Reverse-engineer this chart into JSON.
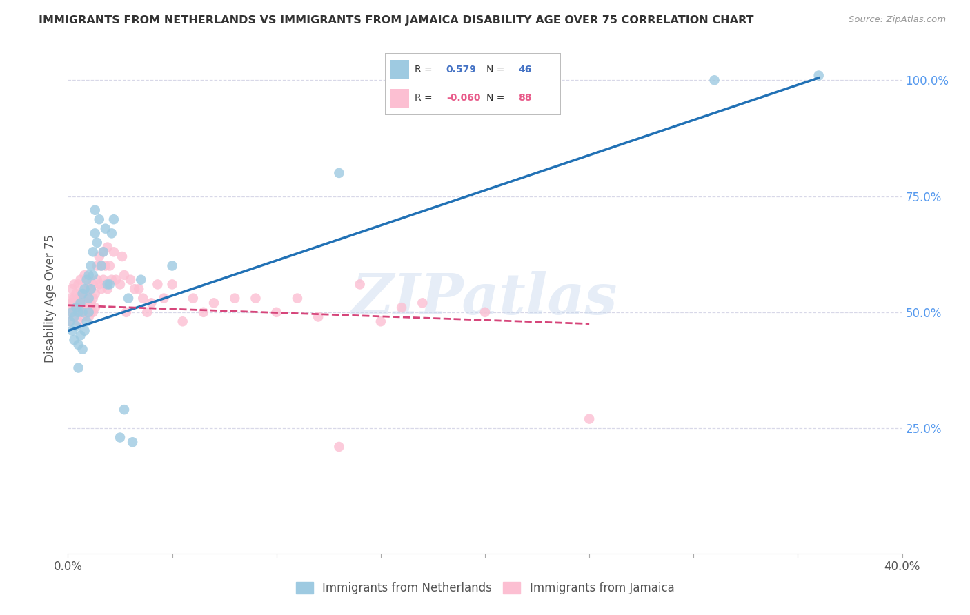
{
  "title": "IMMIGRANTS FROM NETHERLANDS VS IMMIGRANTS FROM JAMAICA DISABILITY AGE OVER 75 CORRELATION CHART",
  "source": "Source: ZipAtlas.com",
  "ylabel": "Disability Age Over 75",
  "y_ticks_right": [
    "100.0%",
    "75.0%",
    "50.0%",
    "25.0%"
  ],
  "y_ticks_right_vals": [
    1.0,
    0.75,
    0.5,
    0.25
  ],
  "xlim": [
    0.0,
    0.4
  ],
  "ylim": [
    -0.02,
    1.08
  ],
  "color_netherlands": "#9ecae1",
  "color_jamaica": "#fcbfd2",
  "trendline_netherlands": "#2171b5",
  "trendline_jamaica": "#d6457a",
  "nl_trend_x0": 0.0,
  "nl_trend_y0": 0.46,
  "nl_trend_x1": 0.36,
  "nl_trend_y1": 1.005,
  "jm_trend_x0": 0.0,
  "jm_trend_y0": 0.515,
  "jm_trend_x1": 0.25,
  "jm_trend_y1": 0.475,
  "netherlands_x": [
    0.001,
    0.002,
    0.002,
    0.003,
    0.003,
    0.004,
    0.004,
    0.005,
    0.005,
    0.005,
    0.006,
    0.006,
    0.007,
    0.007,
    0.007,
    0.008,
    0.008,
    0.009,
    0.009,
    0.01,
    0.01,
    0.01,
    0.011,
    0.011,
    0.012,
    0.012,
    0.013,
    0.013,
    0.014,
    0.015,
    0.016,
    0.017,
    0.018,
    0.019,
    0.02,
    0.021,
    0.022,
    0.025,
    0.027,
    0.029,
    0.031,
    0.035,
    0.05,
    0.13,
    0.31,
    0.36
  ],
  "netherlands_y": [
    0.48,
    0.5,
    0.46,
    0.44,
    0.49,
    0.51,
    0.47,
    0.38,
    0.43,
    0.5,
    0.52,
    0.45,
    0.42,
    0.5,
    0.54,
    0.46,
    0.55,
    0.48,
    0.57,
    0.5,
    0.53,
    0.58,
    0.6,
    0.55,
    0.63,
    0.58,
    0.67,
    0.72,
    0.65,
    0.7,
    0.6,
    0.63,
    0.68,
    0.56,
    0.56,
    0.67,
    0.7,
    0.23,
    0.29,
    0.53,
    0.22,
    0.57,
    0.6,
    0.8,
    1.0,
    1.01
  ],
  "jamaica_x": [
    0.001,
    0.001,
    0.001,
    0.002,
    0.002,
    0.002,
    0.003,
    0.003,
    0.003,
    0.003,
    0.004,
    0.004,
    0.004,
    0.005,
    0.005,
    0.005,
    0.005,
    0.006,
    0.006,
    0.006,
    0.006,
    0.007,
    0.007,
    0.007,
    0.008,
    0.008,
    0.008,
    0.008,
    0.009,
    0.009,
    0.009,
    0.01,
    0.01,
    0.01,
    0.01,
    0.011,
    0.011,
    0.011,
    0.012,
    0.012,
    0.012,
    0.013,
    0.013,
    0.014,
    0.014,
    0.015,
    0.015,
    0.016,
    0.016,
    0.017,
    0.017,
    0.018,
    0.018,
    0.019,
    0.019,
    0.02,
    0.021,
    0.022,
    0.023,
    0.025,
    0.026,
    0.027,
    0.028,
    0.03,
    0.032,
    0.034,
    0.036,
    0.038,
    0.04,
    0.043,
    0.046,
    0.05,
    0.055,
    0.06,
    0.065,
    0.07,
    0.08,
    0.09,
    0.1,
    0.11,
    0.12,
    0.13,
    0.14,
    0.15,
    0.16,
    0.17,
    0.2,
    0.25
  ],
  "jamaica_y": [
    0.48,
    0.51,
    0.53,
    0.5,
    0.52,
    0.55,
    0.49,
    0.51,
    0.53,
    0.56,
    0.5,
    0.52,
    0.54,
    0.48,
    0.51,
    0.53,
    0.56,
    0.5,
    0.52,
    0.54,
    0.57,
    0.49,
    0.51,
    0.53,
    0.5,
    0.52,
    0.54,
    0.58,
    0.5,
    0.52,
    0.55,
    0.49,
    0.51,
    0.53,
    0.56,
    0.5,
    0.52,
    0.55,
    0.5,
    0.53,
    0.56,
    0.51,
    0.54,
    0.57,
    0.6,
    0.56,
    0.62,
    0.55,
    0.6,
    0.57,
    0.63,
    0.56,
    0.6,
    0.55,
    0.64,
    0.6,
    0.57,
    0.63,
    0.57,
    0.56,
    0.62,
    0.58,
    0.5,
    0.57,
    0.55,
    0.55,
    0.53,
    0.5,
    0.52,
    0.56,
    0.53,
    0.56,
    0.48,
    0.53,
    0.5,
    0.52,
    0.53,
    0.53,
    0.5,
    0.53,
    0.49,
    0.21,
    0.56,
    0.48,
    0.51,
    0.52,
    0.5,
    0.27
  ],
  "watermark": "ZIPatlas",
  "background_color": "#ffffff",
  "grid_color": "#d8d8e8",
  "legend_r1_label": "R = ",
  "legend_r1_val": "0.579",
  "legend_r1_n_label": "N = ",
  "legend_r1_n_val": "46",
  "legend_r2_label": "R = ",
  "legend_r2_val": "-0.060",
  "legend_r2_n_label": "N = ",
  "legend_r2_n_val": "88",
  "legend_color": "#4472c4",
  "legend_neg_color": "#e85b8a"
}
